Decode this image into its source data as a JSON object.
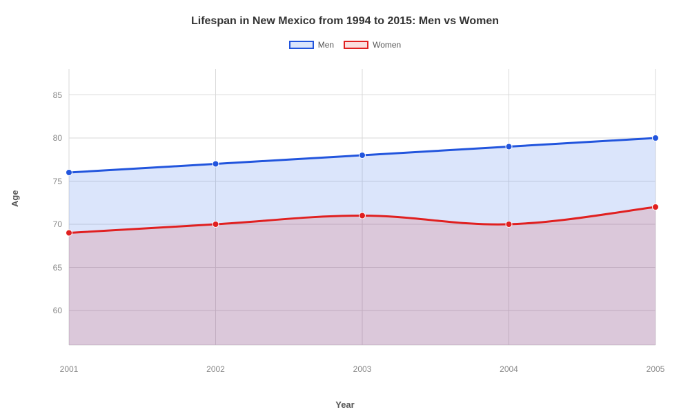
{
  "chart": {
    "type": "area-line",
    "title": "Lifespan in New Mexico from 1994 to 2015: Men vs Women",
    "title_fontsize": 16,
    "title_color": "#333333",
    "background_color": "#ffffff",
    "plot_background_color": "#ffffff",
    "grid_color": "#d9d9d9",
    "axis_tick_color": "#888888",
    "axis_label_color": "#555555",
    "x": {
      "label": "Year",
      "label_fontsize": 13,
      "categories": [
        "2001",
        "2002",
        "2003",
        "2004",
        "2005"
      ]
    },
    "y": {
      "label": "Age",
      "label_fontsize": 13,
      "min": 56,
      "max": 88,
      "ticks": [
        60,
        65,
        70,
        75,
        80,
        85
      ]
    },
    "series": [
      {
        "name": "Men",
        "line_color": "#2255dd",
        "fill_color": "rgba(55,110,235,0.18)",
        "line_width": 3,
        "marker_radius": 4.5,
        "values": [
          76,
          77,
          78,
          79,
          80
        ]
      },
      {
        "name": "Women",
        "line_color": "#e02020",
        "fill_color": "rgba(224,32,32,0.15)",
        "line_width": 3,
        "marker_radius": 4.5,
        "values": [
          69,
          70,
          71,
          70,
          72
        ]
      }
    ],
    "legend": {
      "position": "top-center",
      "swatch_border_width": 2
    }
  }
}
